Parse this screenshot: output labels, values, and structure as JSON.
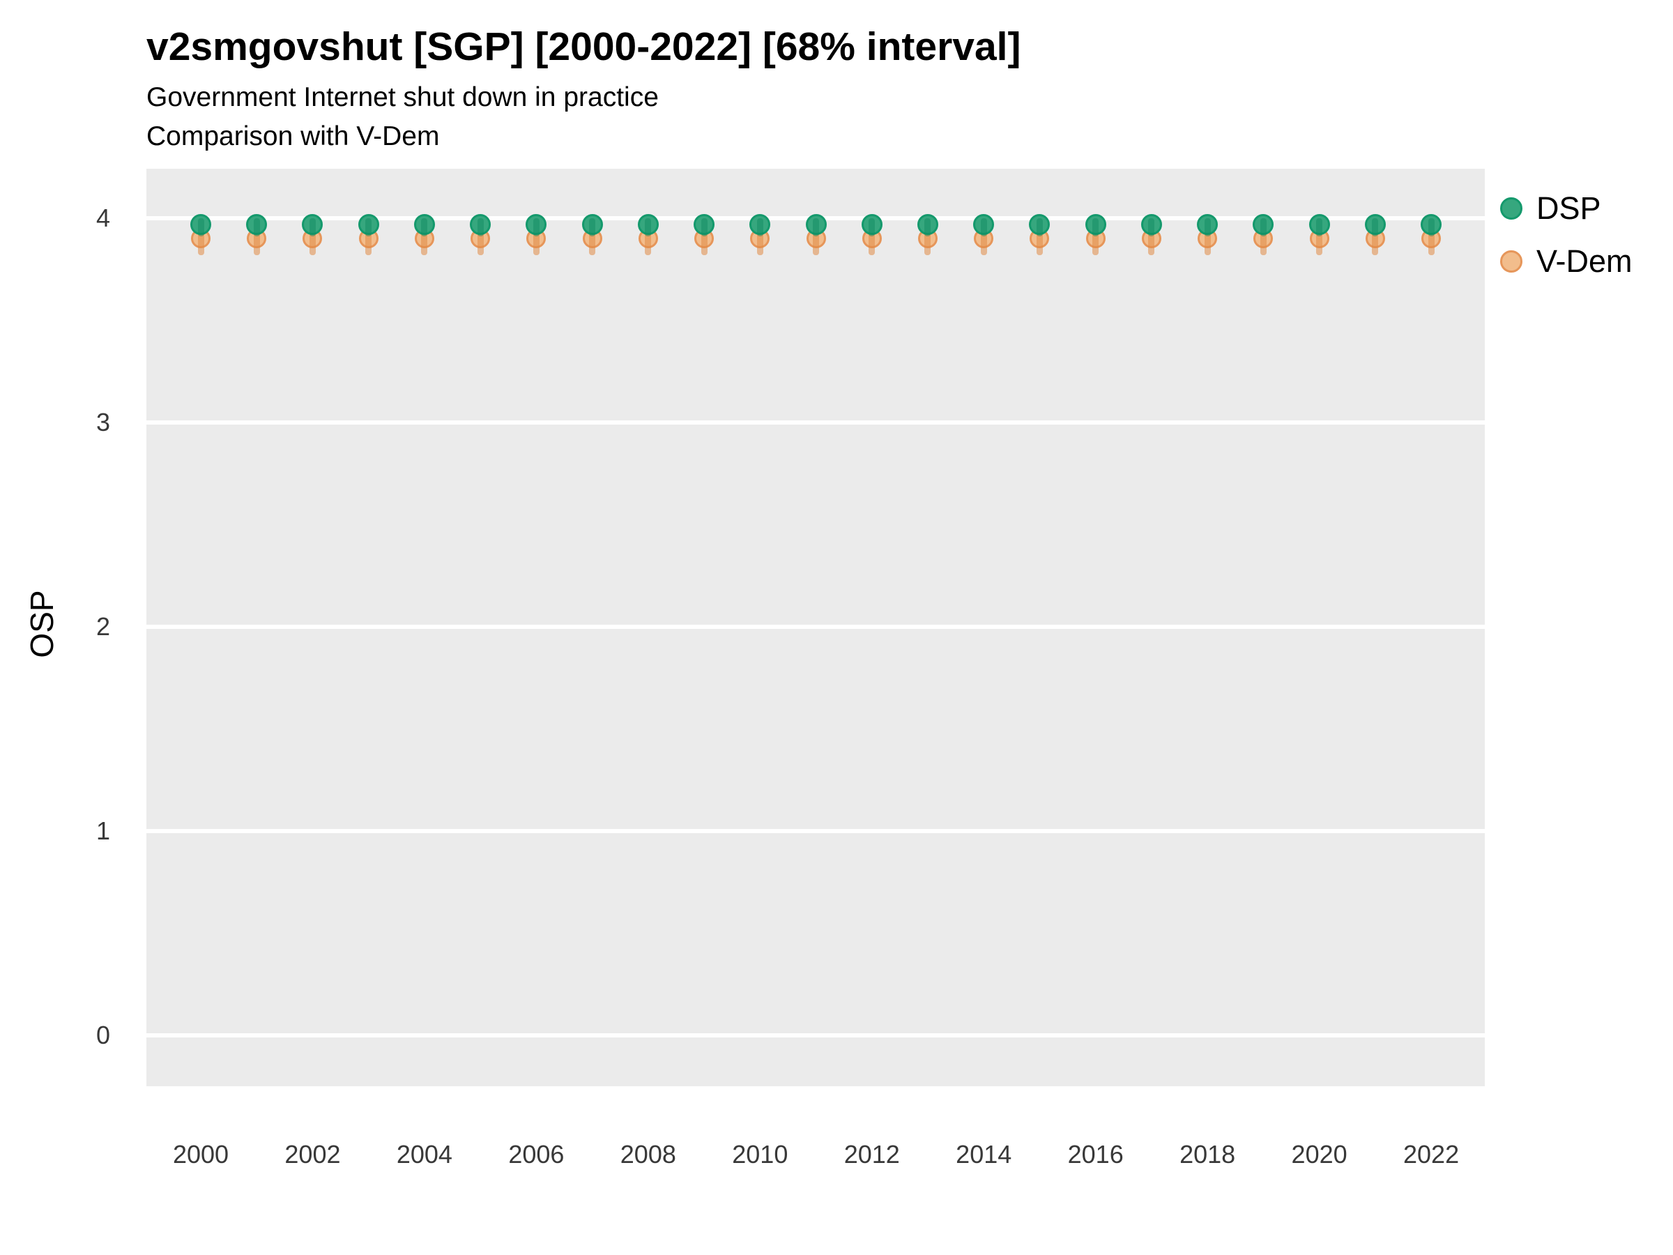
{
  "header": {
    "title": "v2smgovshut [SGP] [2000-2022] [68% interval]",
    "subtitle_line1": "Government Internet shut down in practice",
    "subtitle_line2": "Comparison with V-Dem"
  },
  "axes": {
    "y_label": "OSP",
    "y_ticks": [
      0,
      1,
      2,
      3,
      4
    ],
    "x_ticks": [
      2000,
      2002,
      2004,
      2006,
      2008,
      2010,
      2012,
      2014,
      2016,
      2018,
      2020,
      2022
    ]
  },
  "legend": {
    "items": [
      {
        "label": "DSP",
        "fill": "#36a77e",
        "stroke": "#14996c"
      },
      {
        "label": "V-Dem",
        "fill": "#f2bd8c",
        "stroke": "#e6965a"
      }
    ]
  },
  "colors": {
    "panel_background": "#ebebeb",
    "gridline": "#ffffff",
    "tick_text": "#383838",
    "dsp_fill": "#36a77e",
    "dsp_stroke": "#14996c",
    "dsp_interval": "rgba(16,138,95,0.45)",
    "vdem_fill": "#f2bd8c",
    "vdem_stroke": "#e6965a",
    "vdem_interval": "rgba(224,138,70,0.55)"
  },
  "chart_data": {
    "type": "scatter",
    "title": "v2smgovshut [SGP] [2000-2022] [68% interval]",
    "subtitle": "Government Internet shut down in practice — Comparison with V-Dem",
    "xlabel": "",
    "ylabel": "OSP",
    "interval_note": "68% interval",
    "grid": "major horizontal white lines on gray panel",
    "legend_position": "right-top",
    "xlim": [
      1999,
      2023.1
    ],
    "ylim": [
      -0.25,
      4.25
    ],
    "x": [
      2000,
      2001,
      2002,
      2003,
      2004,
      2005,
      2006,
      2007,
      2008,
      2009,
      2010,
      2011,
      2012,
      2013,
      2014,
      2015,
      2016,
      2017,
      2018,
      2019,
      2020,
      2021,
      2022
    ],
    "series": [
      {
        "name": "DSP",
        "fill": "#36a77e",
        "stroke": "#14996c",
        "bar_color": "rgba(16,138,95,0.45)",
        "values": [
          3.97,
          3.97,
          3.97,
          3.97,
          3.97,
          3.97,
          3.97,
          3.97,
          3.97,
          3.97,
          3.97,
          3.97,
          3.97,
          3.97,
          3.97,
          3.97,
          3.97,
          3.97,
          3.97,
          3.97,
          3.97,
          3.97,
          3.97
        ],
        "interval_low": [
          3.91,
          3.91,
          3.91,
          3.91,
          3.91,
          3.91,
          3.91,
          3.91,
          3.91,
          3.91,
          3.91,
          3.91,
          3.91,
          3.91,
          3.91,
          3.91,
          3.91,
          3.91,
          3.91,
          3.91,
          3.91,
          3.91,
          3.91
        ],
        "interval_high": [
          4.0,
          4.0,
          4.0,
          4.0,
          4.0,
          4.0,
          4.0,
          4.0,
          4.0,
          4.0,
          4.0,
          4.0,
          4.0,
          4.0,
          4.0,
          4.0,
          4.0,
          4.0,
          4.0,
          4.0,
          4.0,
          4.0,
          4.0
        ]
      },
      {
        "name": "V-Dem",
        "fill": "#f2bd8c",
        "stroke": "#e6965a",
        "bar_color": "rgba(224,138,70,0.55)",
        "values": [
          3.9,
          3.9,
          3.9,
          3.9,
          3.9,
          3.9,
          3.9,
          3.9,
          3.9,
          3.9,
          3.9,
          3.9,
          3.9,
          3.9,
          3.9,
          3.9,
          3.9,
          3.9,
          3.9,
          3.9,
          3.9,
          3.9,
          3.9
        ],
        "interval_low": [
          3.82,
          3.82,
          3.82,
          3.82,
          3.82,
          3.82,
          3.82,
          3.82,
          3.82,
          3.82,
          3.82,
          3.82,
          3.82,
          3.82,
          3.82,
          3.82,
          3.82,
          3.82,
          3.82,
          3.82,
          3.82,
          3.82,
          3.82
        ],
        "interval_high": [
          3.97,
          3.97,
          3.97,
          3.97,
          3.97,
          3.97,
          3.97,
          3.97,
          3.97,
          3.97,
          3.97,
          3.97,
          3.97,
          3.97,
          3.97,
          3.97,
          3.97,
          3.97,
          3.97,
          3.97,
          3.97,
          3.97,
          3.97
        ]
      }
    ]
  }
}
